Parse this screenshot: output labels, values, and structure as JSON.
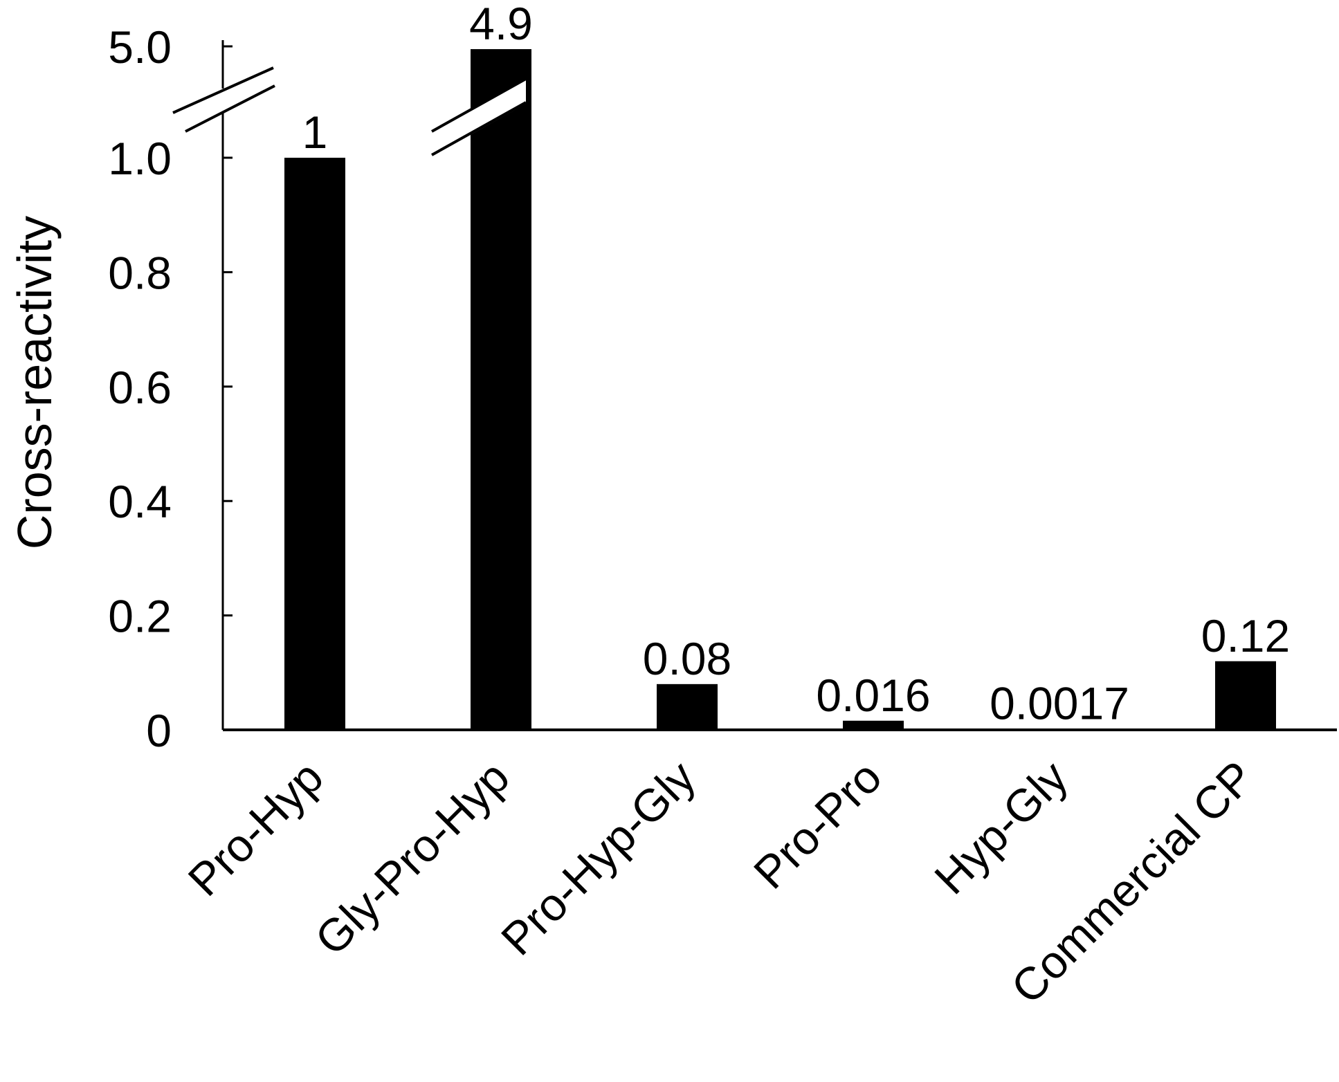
{
  "chart_data": {
    "type": "bar",
    "title": "",
    "xlabel": "",
    "ylabel": "Cross-reactivity",
    "ylim": [
      0,
      1.0
    ],
    "axis_break": {
      "lower_top": 1.0,
      "upper_value": 5.0
    },
    "categories": [
      "Pro-Hyp",
      "Gly-Pro-Hyp",
      "Pro-Hyp-Gly",
      "Pro-Pro",
      "Hyp-Gly",
      "Commercial CP"
    ],
    "values": [
      1,
      4.9,
      0.08,
      0.016,
      0.0017,
      0.12
    ],
    "data_labels": [
      "1",
      "4.9",
      "0.08",
      "0.016",
      "0.0017",
      "0.12"
    ],
    "y_ticks": [
      {
        "value": 0,
        "label": "0"
      },
      {
        "value": 0.2,
        "label": "0.2"
      },
      {
        "value": 0.4,
        "label": "0.4"
      },
      {
        "value": 0.6,
        "label": "0.6"
      },
      {
        "value": 0.8,
        "label": "0.8"
      },
      {
        "value": 1.0,
        "label": "1.0"
      },
      {
        "value": 5.0,
        "label": "5.0"
      }
    ],
    "bar_color": "#000000",
    "grid": false,
    "legend": "none"
  }
}
